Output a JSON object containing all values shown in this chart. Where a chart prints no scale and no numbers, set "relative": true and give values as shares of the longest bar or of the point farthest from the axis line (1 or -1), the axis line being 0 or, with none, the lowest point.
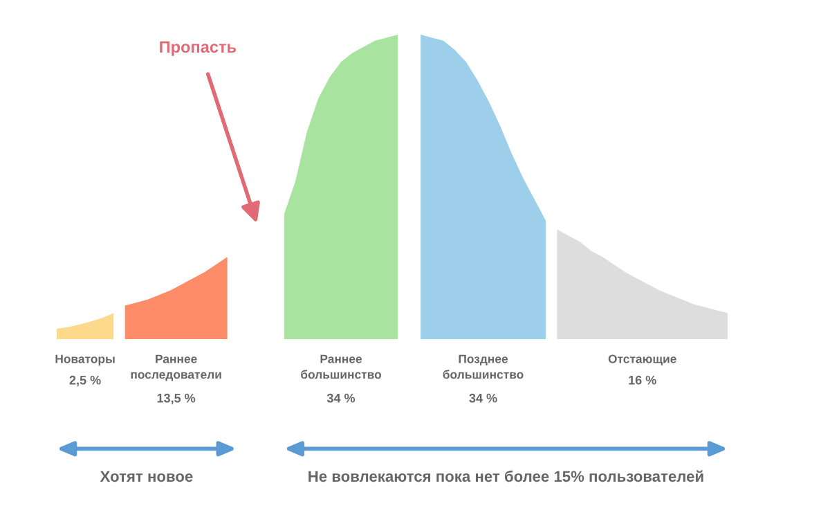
{
  "chart_data": {
    "type": "area",
    "relative": true,
    "categories": [
      null,
      null,
      null,
      null,
      null,
      null,
      null,
      null,
      null,
      null,
      null,
      null,
      null,
      null,
      null,
      null,
      null,
      null,
      null,
      null,
      null,
      null,
      null,
      null,
      null,
      null,
      null,
      null,
      null,
      null,
      null,
      null,
      null,
      null,
      null,
      null,
      null,
      null,
      null,
      null,
      null,
      null,
      null,
      null,
      null,
      null,
      null,
      null,
      null,
      null,
      null,
      null,
      null,
      null,
      null,
      null,
      null,
      null,
      null,
      null
    ],
    "series": [
      {
        "name": "Новаторы",
        "color": "#fdd98b",
        "values": [
          0.034,
          0.04,
          0.048,
          0.058,
          0.07,
          0.085,
          null,
          null,
          null,
          null,
          null,
          null,
          null,
          null,
          null,
          null,
          null,
          null,
          null,
          null,
          null,
          null,
          null,
          null,
          null,
          null,
          null,
          null,
          null,
          null,
          null,
          null,
          null,
          null,
          null,
          null,
          null,
          null,
          null,
          null,
          null,
          null,
          null,
          null,
          null,
          null,
          null,
          null,
          null,
          null,
          null,
          null,
          null,
          null,
          null,
          null,
          null,
          null,
          null,
          null
        ]
      },
      {
        "name": "Раннее\nпоследователи",
        "color": "#fe8c69",
        "values": [
          null,
          null,
          null,
          null,
          null,
          null,
          0.11,
          0.12,
          0.13,
          0.145,
          0.16,
          0.18,
          0.2,
          0.22,
          0.245,
          0.27,
          null,
          null,
          null,
          null,
          null,
          null,
          null,
          null,
          null,
          null,
          null,
          null,
          null,
          null,
          null,
          null,
          null,
          null,
          null,
          null,
          null,
          null,
          null,
          null,
          null,
          null,
          null,
          null,
          null,
          null,
          null,
          null,
          null,
          null,
          null,
          null,
          null,
          null,
          null,
          null,
          null,
          null,
          null,
          null
        ]
      },
      {
        "name": "Раннее\nбольшинство",
        "color": "#a8e4a0",
        "values": [
          null,
          null,
          null,
          null,
          null,
          null,
          null,
          null,
          null,
          null,
          null,
          null,
          null,
          null,
          null,
          null,
          null,
          null,
          null,
          null,
          0.41,
          0.52,
          0.68,
          0.79,
          0.86,
          0.91,
          0.94,
          0.96,
          0.98,
          0.99,
          1.0,
          null,
          null,
          null,
          null,
          null,
          null,
          null,
          null,
          null,
          null,
          null,
          null,
          null,
          null,
          null,
          null,
          null,
          null,
          null,
          null,
          null,
          null,
          null,
          null,
          null,
          null,
          null,
          null,
          null
        ]
      },
      {
        "name": "Позднее\nбольшинство",
        "color": "#9dcfea",
        "values": [
          null,
          null,
          null,
          null,
          null,
          null,
          null,
          null,
          null,
          null,
          null,
          null,
          null,
          null,
          null,
          null,
          null,
          null,
          null,
          null,
          null,
          null,
          null,
          null,
          null,
          null,
          null,
          null,
          null,
          null,
          null,
          null,
          1.0,
          0.99,
          0.98,
          0.95,
          0.91,
          0.85,
          0.78,
          0.7,
          0.61,
          0.53,
          0.46,
          0.39,
          null,
          null,
          null,
          null,
          null,
          null,
          null,
          null,
          null,
          null,
          null,
          null,
          null,
          null,
          null,
          null
        ]
      },
      {
        "name": "Отстающие",
        "color": "#dddddd",
        "values": [
          null,
          null,
          null,
          null,
          null,
          null,
          null,
          null,
          null,
          null,
          null,
          null,
          null,
          null,
          null,
          null,
          null,
          null,
          null,
          null,
          null,
          null,
          null,
          null,
          null,
          null,
          null,
          null,
          null,
          null,
          null,
          null,
          null,
          null,
          null,
          null,
          null,
          null,
          null,
          null,
          null,
          null,
          null,
          null,
          0.36,
          0.34,
          0.32,
          0.29,
          0.27,
          0.245,
          0.22,
          0.2,
          0.18,
          0.16,
          0.145,
          0.13,
          0.115,
          0.105,
          0.095,
          0.086
        ]
      }
    ],
    "annotations": [
      "Пропасть",
      "2,5 %",
      "13,5 %",
      "34 %",
      "34 %",
      "16 %",
      "Хотят новое",
      "Не вовлекаются пока нет более 15% пользователей"
    ],
    "legend": false
  }
}
